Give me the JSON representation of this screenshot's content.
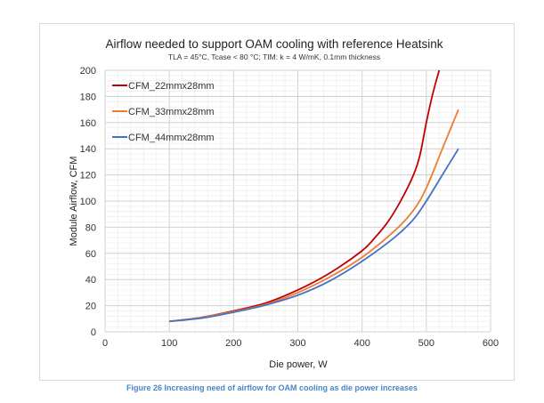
{
  "chart_data": {
    "type": "line",
    "title": "Airflow needed to support OAM cooling with reference Heatsink",
    "subtitle": "TLA = 45°C, Tcase < 80 °C; TIM: k = 4 W/mK, 0.1mm thickness",
    "xlabel": "Die power, W",
    "ylabel": "Module Airflow, CFM",
    "xlim": [
      0,
      600
    ],
    "ylim": [
      0,
      200
    ],
    "xticks": [
      0,
      100,
      200,
      300,
      400,
      500,
      600
    ],
    "yticks": [
      0,
      20,
      40,
      60,
      80,
      100,
      120,
      140,
      160,
      180,
      200
    ],
    "grid": true,
    "legend": "top-left",
    "series": [
      {
        "name": "CFM_22mmx28mm",
        "color": "#c00000",
        "x": [
          100,
          150,
          200,
          250,
          300,
          350,
          400,
          420,
          440,
          460,
          480,
          490,
          500,
          510,
          520
        ],
        "y": [
          8,
          11,
          16,
          22,
          32,
          45,
          62,
          72,
          84,
          100,
          120,
          135,
          160,
          182,
          200
        ]
      },
      {
        "name": "CFM_33mmx28mm",
        "color": "#ed7d31",
        "x": [
          100,
          150,
          200,
          250,
          300,
          350,
          400,
          450,
          480,
          500,
          525,
          550
        ],
        "y": [
          8,
          11,
          15.5,
          21,
          30,
          42,
          57,
          77,
          93,
          110,
          140,
          170
        ]
      },
      {
        "name": "CFM_44mmx28mm",
        "color": "#4472c4",
        "x": [
          100,
          150,
          200,
          250,
          300,
          350,
          400,
          450,
          480,
          500,
          525,
          550
        ],
        "y": [
          8,
          10.5,
          15,
          20.5,
          28,
          39,
          54,
          72,
          86,
          100,
          120,
          140
        ]
      }
    ]
  },
  "caption": "Figure 26 Increasing need of airflow for OAM cooling as die power increases"
}
